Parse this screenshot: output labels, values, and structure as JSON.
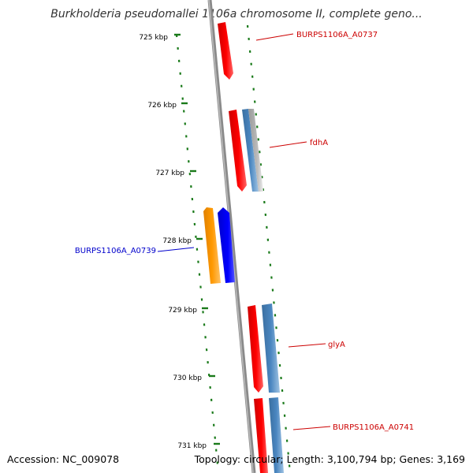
{
  "title": "Burkholderia pseudomallei 1106a chromosome II, complete geno...",
  "accession_text": "Accession: NC_009078",
  "summary_text": "Topology: circular; Length: 3,100,794 bp; Genes: 3,169",
  "colors": {
    "forward_red": "#ff0000",
    "forward_blue": "#4a86c0",
    "reverse_orange": "#ff9900",
    "reverse_blue": "#0000ff",
    "label_red": "#cc0000",
    "label_blue": "#0000cc",
    "ruler_green": "#1a7a1a",
    "backbone": "#888888"
  },
  "ticks": [
    {
      "label": "725 kbp"
    },
    {
      "label": "726 kbp"
    },
    {
      "label": "727 kbp"
    },
    {
      "label": "728 kbp"
    },
    {
      "label": "729 kbp"
    },
    {
      "label": "730 kbp"
    },
    {
      "label": "731 kbp"
    }
  ],
  "gene_labels": [
    {
      "text": "BURPS1106A_A0737",
      "strand": "forward"
    },
    {
      "text": "fdhA",
      "strand": "forward"
    },
    {
      "text": "BURPS1106A_A0739",
      "strand": "reverse"
    },
    {
      "text": "glyA",
      "strand": "forward"
    },
    {
      "text": "BURPS1106A_A0741",
      "strand": "forward"
    }
  ]
}
